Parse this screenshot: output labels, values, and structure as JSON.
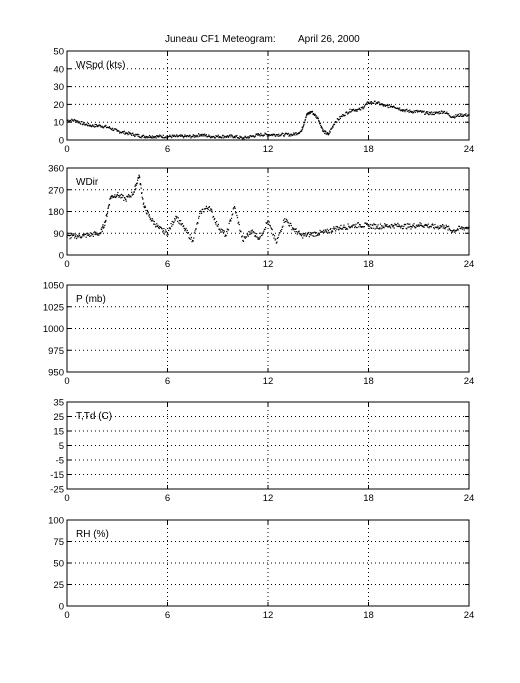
{
  "figure": {
    "title": "Juneau CF1 Meteogram:",
    "date": "April 26, 2000"
  },
  "chart_data": [
    {
      "type": "scatter",
      "label": "WSpd (kts)",
      "xlim": [
        0,
        24
      ],
      "xticks": [
        0,
        6,
        12,
        18,
        24
      ],
      "ylim": [
        0,
        50
      ],
      "yticks": [
        0,
        10,
        20,
        30,
        40,
        50
      ],
      "grid": true,
      "series": [
        {
          "x": [
            0,
            0.5,
            1,
            1.5,
            2,
            2.5,
            3,
            3.5,
            4,
            4.5,
            5,
            5.5,
            6,
            6.5,
            7,
            7.5,
            8,
            8.5,
            9,
            9.5,
            10,
            10.5,
            11,
            11.5,
            12,
            12.5,
            13,
            13.5,
            14,
            14.3,
            14.6,
            15,
            15.3,
            15.6,
            16,
            16.5,
            17,
            17.5,
            18,
            18.5,
            19,
            19.5,
            20,
            20.5,
            21,
            21.5,
            22,
            22.5,
            23,
            23.5,
            24
          ],
          "y": [
            11,
            11,
            9,
            8,
            8,
            7,
            5,
            4,
            3,
            2,
            2,
            2,
            2,
            2,
            2,
            2,
            3,
            2,
            2,
            2,
            2,
            1,
            2,
            3,
            3,
            3,
            3,
            3,
            5,
            14,
            16,
            12,
            5,
            3,
            10,
            14,
            17,
            17,
            21,
            21,
            19,
            19,
            17,
            16,
            16,
            15,
            15,
            16,
            13,
            14,
            14
          ]
        }
      ]
    },
    {
      "type": "scatter",
      "label": "WDir",
      "xlim": [
        0,
        24
      ],
      "xticks": [
        0,
        6,
        12,
        18,
        24
      ],
      "ylim": [
        0,
        360
      ],
      "yticks": [
        0,
        90,
        180,
        270,
        360
      ],
      "grid": true,
      "series": [
        {
          "x": [
            0,
            0.5,
            1,
            1.5,
            2,
            2.3,
            2.6,
            3,
            3.5,
            4,
            4.3,
            4.6,
            5,
            5.5,
            6,
            6.5,
            7,
            7.5,
            8,
            8.5,
            9,
            9.5,
            10,
            10.5,
            11,
            11.5,
            12,
            12.5,
            13,
            13.5,
            14,
            14.5,
            15,
            15.5,
            16,
            16.5,
            17,
            17.5,
            18,
            18.5,
            19,
            19.5,
            20,
            20.5,
            21,
            21.5,
            22,
            22.5,
            23,
            23.5,
            24
          ],
          "y": [
            75,
            78,
            80,
            85,
            90,
            140,
            240,
            250,
            230,
            260,
            330,
            200,
            150,
            110,
            90,
            160,
            110,
            60,
            180,
            200,
            120,
            80,
            200,
            60,
            100,
            70,
            140,
            50,
            150,
            110,
            80,
            85,
            90,
            95,
            110,
            115,
            120,
            125,
            120,
            118,
            120,
            122,
            120,
            118,
            125,
            122,
            115,
            120,
            100,
            110,
            115
          ]
        }
      ]
    },
    {
      "type": "line",
      "label": "P (mb)",
      "xlim": [
        0,
        24
      ],
      "xticks": [
        0,
        6,
        12,
        18,
        24
      ],
      "ylim": [
        950,
        1050
      ],
      "yticks": [
        950,
        975,
        1000,
        1025,
        1050
      ],
      "grid": true,
      "series": []
    },
    {
      "type": "line",
      "label": "T,Td (C)",
      "xlim": [
        0,
        24
      ],
      "xticks": [
        0,
        6,
        12,
        18,
        24
      ],
      "ylim": [
        -25,
        35
      ],
      "yticks": [
        -25,
        -15,
        -5,
        5,
        15,
        25,
        35
      ],
      "ytick_labels": [
        "-25",
        "-15",
        "-5",
        "5",
        "15",
        "25",
        "35"
      ],
      "grid": true,
      "series": []
    },
    {
      "type": "line",
      "label": "RH (%)",
      "xlim": [
        0,
        24
      ],
      "xticks": [
        0,
        6,
        12,
        18,
        24
      ],
      "ylim": [
        0,
        100
      ],
      "yticks": [
        0,
        25,
        50,
        75,
        100
      ],
      "grid": true,
      "series": []
    }
  ]
}
